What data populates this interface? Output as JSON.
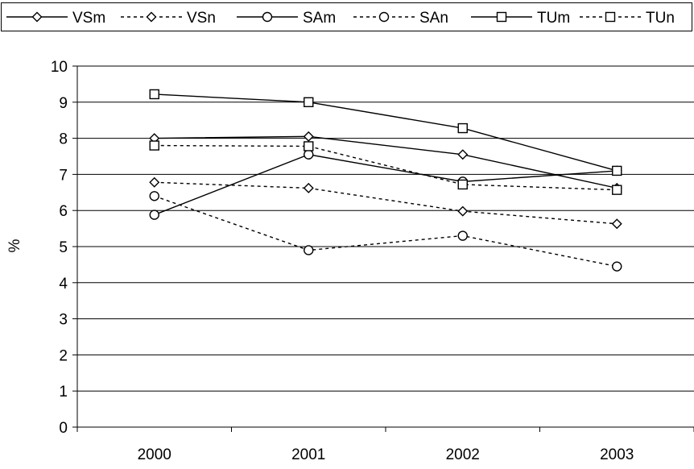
{
  "chart_data": {
    "type": "line",
    "title": "",
    "xlabel": "",
    "ylabel": "%",
    "categories": [
      "2000",
      "2001",
      "2002",
      "2003"
    ],
    "ylim": [
      0,
      10
    ],
    "yticks": [
      "0",
      "1",
      "2",
      "3",
      "4",
      "5",
      "6",
      "7",
      "8",
      "9",
      "10"
    ],
    "grid": "horizontal",
    "legend_position": "top",
    "series": [
      {
        "name": "VSm",
        "marker": "diamond",
        "dashed": false,
        "values": [
          8.0,
          8.05,
          7.55,
          6.62
        ]
      },
      {
        "name": "VSn",
        "marker": "diamond",
        "dashed": true,
        "values": [
          6.78,
          6.62,
          5.98,
          5.63
        ]
      },
      {
        "name": "SAm",
        "marker": "circle",
        "dashed": false,
        "values": [
          5.88,
          7.55,
          6.8,
          7.1
        ]
      },
      {
        "name": "SAn",
        "marker": "circle",
        "dashed": true,
        "values": [
          6.4,
          4.9,
          5.3,
          4.45
        ]
      },
      {
        "name": "TUm",
        "marker": "square",
        "dashed": false,
        "values": [
          9.22,
          9.0,
          8.28,
          7.1
        ]
      },
      {
        "name": "TUn",
        "marker": "square",
        "dashed": true,
        "values": [
          7.8,
          7.78,
          6.72,
          6.57
        ]
      }
    ]
  }
}
